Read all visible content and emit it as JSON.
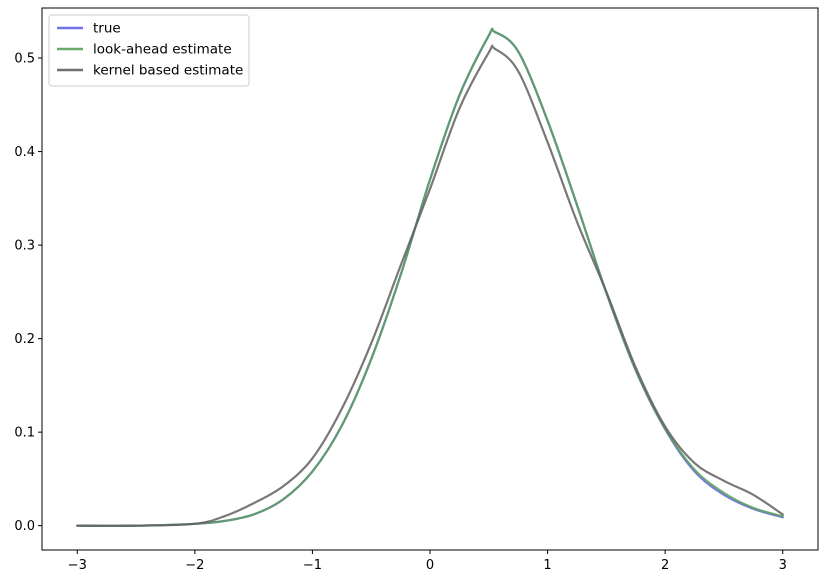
{
  "chart_data": {
    "type": "line",
    "title": "",
    "xlabel": "",
    "ylabel": "",
    "xlim": [
      -3.3,
      3.3
    ],
    "ylim": [
      -0.026,
      0.5535
    ],
    "xticks": [
      -3,
      -2,
      -1,
      0,
      1,
      2,
      3
    ],
    "xtick_labels": [
      "−3",
      "−2",
      "−1",
      "0",
      "1",
      "2",
      "3"
    ],
    "yticks": [
      0.0,
      0.1,
      0.2,
      0.3,
      0.4,
      0.5
    ],
    "ytick_labels": [
      "0.0",
      "0.1",
      "0.2",
      "0.3",
      "0.4",
      "0.5"
    ],
    "grid": false,
    "legend_position": "top-left",
    "series": [
      {
        "name": "true",
        "color": "#6060e8",
        "x": [
          -3.0,
          -2.5,
          -2.0,
          -1.75,
          -1.5,
          -1.25,
          -1.0,
          -0.75,
          -0.5,
          -0.25,
          0.0,
          0.25,
          0.5,
          0.55,
          0.75,
          1.0,
          1.25,
          1.5,
          1.75,
          2.0,
          2.25,
          2.5,
          2.75,
          3.0
        ],
        "y": [
          0.0,
          0.0,
          0.002,
          0.005,
          0.012,
          0.028,
          0.058,
          0.107,
          0.178,
          0.268,
          0.37,
          0.46,
          0.524,
          0.528,
          0.507,
          0.433,
          0.343,
          0.249,
          0.166,
          0.103,
          0.058,
          0.033,
          0.018,
          0.009
        ]
      },
      {
        "name": "look-ahead estimate",
        "color": "#5aa05a",
        "x": [
          -3.0,
          -2.5,
          -2.0,
          -1.75,
          -1.5,
          -1.25,
          -1.0,
          -0.75,
          -0.5,
          -0.25,
          0.0,
          0.25,
          0.5,
          0.55,
          0.75,
          1.0,
          1.25,
          1.5,
          1.75,
          2.0,
          2.25,
          2.5,
          2.75,
          3.0
        ],
        "y": [
          0.0,
          0.0,
          0.002,
          0.005,
          0.012,
          0.028,
          0.058,
          0.107,
          0.178,
          0.268,
          0.37,
          0.46,
          0.524,
          0.528,
          0.507,
          0.433,
          0.343,
          0.249,
          0.166,
          0.104,
          0.06,
          0.035,
          0.019,
          0.01
        ]
      },
      {
        "name": "kernel based estimate",
        "color": "#606060",
        "x": [
          -3.0,
          -2.5,
          -2.0,
          -1.75,
          -1.5,
          -1.25,
          -1.0,
          -0.75,
          -0.5,
          -0.25,
          0.0,
          0.25,
          0.5,
          0.55,
          0.75,
          1.0,
          1.25,
          1.5,
          1.75,
          2.0,
          2.25,
          2.5,
          2.75,
          3.0
        ],
        "y": [
          0.0,
          0.0,
          0.002,
          0.01,
          0.024,
          0.042,
          0.072,
          0.125,
          0.195,
          0.278,
          0.36,
          0.446,
          0.506,
          0.51,
          0.486,
          0.41,
          0.325,
          0.25,
          0.169,
          0.106,
          0.067,
          0.048,
          0.033,
          0.012
        ]
      }
    ]
  }
}
